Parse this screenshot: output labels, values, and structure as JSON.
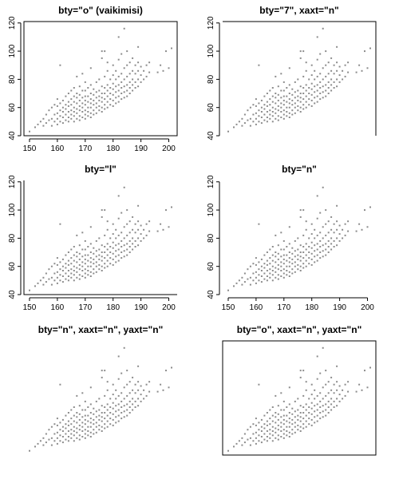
{
  "chart_data": [
    {
      "type": "scatter",
      "title": "bty=\"o\"  (vaikimisi)",
      "bty": "o",
      "xaxis": true,
      "yaxis": true,
      "xticks": [
        150,
        160,
        170,
        180,
        190,
        200
      ],
      "yticks": [
        40,
        60,
        80,
        100,
        120
      ],
      "xlim": [
        148,
        203
      ],
      "ylim": [
        40,
        121
      ]
    },
    {
      "type": "scatter",
      "title": "bty=\"7\", xaxt=\"n\"",
      "bty": "7",
      "xaxis": false,
      "yaxis": true,
      "xticks": [],
      "yticks": [
        40,
        60,
        80,
        100,
        120
      ],
      "xlim": [
        148,
        203
      ],
      "ylim": [
        40,
        121
      ]
    },
    {
      "type": "scatter",
      "title": "bty=\"l\"",
      "bty": "l",
      "xaxis": true,
      "yaxis": true,
      "xticks": [
        150,
        160,
        170,
        180,
        190,
        200
      ],
      "yticks": [
        40,
        60,
        80,
        100,
        120
      ],
      "xlim": [
        148,
        203
      ],
      "ylim": [
        40,
        121
      ]
    },
    {
      "type": "scatter",
      "title": "bty=\"n\"",
      "bty": "n",
      "xaxis": true,
      "yaxis": true,
      "xticks": [
        150,
        160,
        170,
        180,
        190,
        200
      ],
      "yticks": [
        40,
        60,
        80,
        100,
        120
      ],
      "xlim": [
        148,
        203
      ],
      "ylim": [
        40,
        121
      ]
    },
    {
      "type": "scatter",
      "title": "bty=\"n\", xaxt=\"n\", yaxt=\"n\"",
      "bty": "n",
      "xaxis": false,
      "yaxis": false,
      "xticks": [],
      "yticks": [],
      "xlim": [
        148,
        203
      ],
      "ylim": [
        40,
        121
      ]
    },
    {
      "type": "scatter",
      "title": "bty=\"o\", xaxt=\"n\", yaxt=\"n\"",
      "bty": "o",
      "xaxis": false,
      "yaxis": false,
      "xticks": [],
      "yticks": [],
      "xlim": [
        148,
        203
      ],
      "ylim": [
        40,
        121
      ]
    }
  ],
  "scatter_points": [
    [
      150,
      43
    ],
    [
      152,
      46
    ],
    [
      153,
      48
    ],
    [
      154,
      50
    ],
    [
      155,
      47
    ],
    [
      155,
      52
    ],
    [
      156,
      49
    ],
    [
      156,
      55
    ],
    [
      157,
      51
    ],
    [
      157,
      58
    ],
    [
      158,
      52
    ],
    [
      158,
      60
    ],
    [
      158,
      47
    ],
    [
      159,
      50
    ],
    [
      159,
      55
    ],
    [
      159,
      62
    ],
    [
      160,
      48
    ],
    [
      160,
      52
    ],
    [
      160,
      56
    ],
    [
      160,
      61
    ],
    [
      160,
      66
    ],
    [
      161,
      50
    ],
    [
      161,
      54
    ],
    [
      161,
      58
    ],
    [
      161,
      63
    ],
    [
      161,
      90
    ],
    [
      162,
      49
    ],
    [
      162,
      53
    ],
    [
      162,
      57
    ],
    [
      162,
      60
    ],
    [
      162,
      65
    ],
    [
      163,
      51
    ],
    [
      163,
      55
    ],
    [
      163,
      59
    ],
    [
      163,
      62
    ],
    [
      163,
      68
    ],
    [
      164,
      50
    ],
    [
      164,
      53
    ],
    [
      164,
      57
    ],
    [
      164,
      61
    ],
    [
      164,
      64
    ],
    [
      164,
      70
    ],
    [
      165,
      52
    ],
    [
      165,
      55
    ],
    [
      165,
      58
    ],
    [
      165,
      62
    ],
    [
      165,
      66
    ],
    [
      165,
      72
    ],
    [
      166,
      50
    ],
    [
      166,
      54
    ],
    [
      166,
      57
    ],
    [
      166,
      60
    ],
    [
      166,
      64
    ],
    [
      166,
      68
    ],
    [
      166,
      74
    ],
    [
      167,
      52
    ],
    [
      167,
      56
    ],
    [
      167,
      59
    ],
    [
      167,
      63
    ],
    [
      167,
      67
    ],
    [
      167,
      70
    ],
    [
      167,
      82
    ],
    [
      168,
      51
    ],
    [
      168,
      54
    ],
    [
      168,
      58
    ],
    [
      168,
      61
    ],
    [
      168,
      65
    ],
    [
      168,
      69
    ],
    [
      168,
      75
    ],
    [
      169,
      53
    ],
    [
      169,
      57
    ],
    [
      169,
      60
    ],
    [
      169,
      63
    ],
    [
      169,
      67
    ],
    [
      169,
      72
    ],
    [
      169,
      84
    ],
    [
      170,
      52
    ],
    [
      170,
      55
    ],
    [
      170,
      58
    ],
    [
      170,
      62
    ],
    [
      170,
      65
    ],
    [
      170,
      68
    ],
    [
      170,
      72
    ],
    [
      170,
      78
    ],
    [
      171,
      54
    ],
    [
      171,
      57
    ],
    [
      171,
      60
    ],
    [
      171,
      64
    ],
    [
      171,
      68
    ],
    [
      171,
      74
    ],
    [
      172,
      53
    ],
    [
      172,
      56
    ],
    [
      172,
      60
    ],
    [
      172,
      63
    ],
    [
      172,
      66
    ],
    [
      172,
      70
    ],
    [
      172,
      76
    ],
    [
      172,
      88
    ],
    [
      173,
      55
    ],
    [
      173,
      58
    ],
    [
      173,
      62
    ],
    [
      173,
      65
    ],
    [
      173,
      69
    ],
    [
      173,
      73
    ],
    [
      174,
      56
    ],
    [
      174,
      60
    ],
    [
      174,
      63
    ],
    [
      174,
      67
    ],
    [
      174,
      71
    ],
    [
      174,
      78
    ],
    [
      175,
      58
    ],
    [
      175,
      61
    ],
    [
      175,
      65
    ],
    [
      175,
      68
    ],
    [
      175,
      72
    ],
    [
      175,
      80
    ],
    [
      176,
      57
    ],
    [
      176,
      60
    ],
    [
      176,
      64
    ],
    [
      176,
      67
    ],
    [
      176,
      70
    ],
    [
      176,
      75
    ],
    [
      176,
      95
    ],
    [
      176,
      100
    ],
    [
      177,
      59
    ],
    [
      177,
      62
    ],
    [
      177,
      66
    ],
    [
      177,
      70
    ],
    [
      177,
      74
    ],
    [
      177,
      82
    ],
    [
      177,
      100
    ],
    [
      178,
      60
    ],
    [
      178,
      64
    ],
    [
      178,
      68
    ],
    [
      178,
      72
    ],
    [
      178,
      76
    ],
    [
      178,
      86
    ],
    [
      178,
      92
    ],
    [
      179,
      62
    ],
    [
      179,
      66
    ],
    [
      179,
      70
    ],
    [
      179,
      74
    ],
    [
      179,
      80
    ],
    [
      180,
      61
    ],
    [
      180,
      65
    ],
    [
      180,
      69
    ],
    [
      180,
      73
    ],
    [
      180,
      77
    ],
    [
      180,
      83
    ],
    [
      180,
      90
    ],
    [
      181,
      63
    ],
    [
      181,
      67
    ],
    [
      181,
      71
    ],
    [
      181,
      75
    ],
    [
      181,
      80
    ],
    [
      181,
      86
    ],
    [
      182,
      64
    ],
    [
      182,
      68
    ],
    [
      182,
      72
    ],
    [
      182,
      76
    ],
    [
      182,
      82
    ],
    [
      182,
      94
    ],
    [
      182,
      110
    ],
    [
      183,
      66
    ],
    [
      183,
      70
    ],
    [
      183,
      74
    ],
    [
      183,
      78
    ],
    [
      183,
      84
    ],
    [
      183,
      98
    ],
    [
      184,
      67
    ],
    [
      184,
      71
    ],
    [
      184,
      75
    ],
    [
      184,
      80
    ],
    [
      184,
      88
    ],
    [
      184,
      116
    ],
    [
      185,
      68
    ],
    [
      185,
      72
    ],
    [
      185,
      76
    ],
    [
      185,
      82
    ],
    [
      185,
      90
    ],
    [
      185,
      100
    ],
    [
      186,
      70
    ],
    [
      186,
      74
    ],
    [
      186,
      78
    ],
    [
      186,
      84
    ],
    [
      186,
      92
    ],
    [
      187,
      72
    ],
    [
      187,
      76
    ],
    [
      187,
      80
    ],
    [
      187,
      86
    ],
    [
      187,
      95
    ],
    [
      188,
      74
    ],
    [
      188,
      78
    ],
    [
      188,
      84
    ],
    [
      188,
      90
    ],
    [
      189,
      75
    ],
    [
      189,
      80
    ],
    [
      189,
      86
    ],
    [
      189,
      92
    ],
    [
      189,
      103
    ],
    [
      190,
      78
    ],
    [
      190,
      83
    ],
    [
      190,
      89
    ],
    [
      191,
      80
    ],
    [
      191,
      86
    ],
    [
      192,
      82
    ],
    [
      192,
      90
    ],
    [
      193,
      85
    ],
    [
      193,
      92
    ],
    [
      196,
      85
    ],
    [
      197,
      90
    ],
    [
      198,
      86
    ],
    [
      199,
      100
    ],
    [
      200,
      88
    ],
    [
      201,
      102
    ]
  ]
}
